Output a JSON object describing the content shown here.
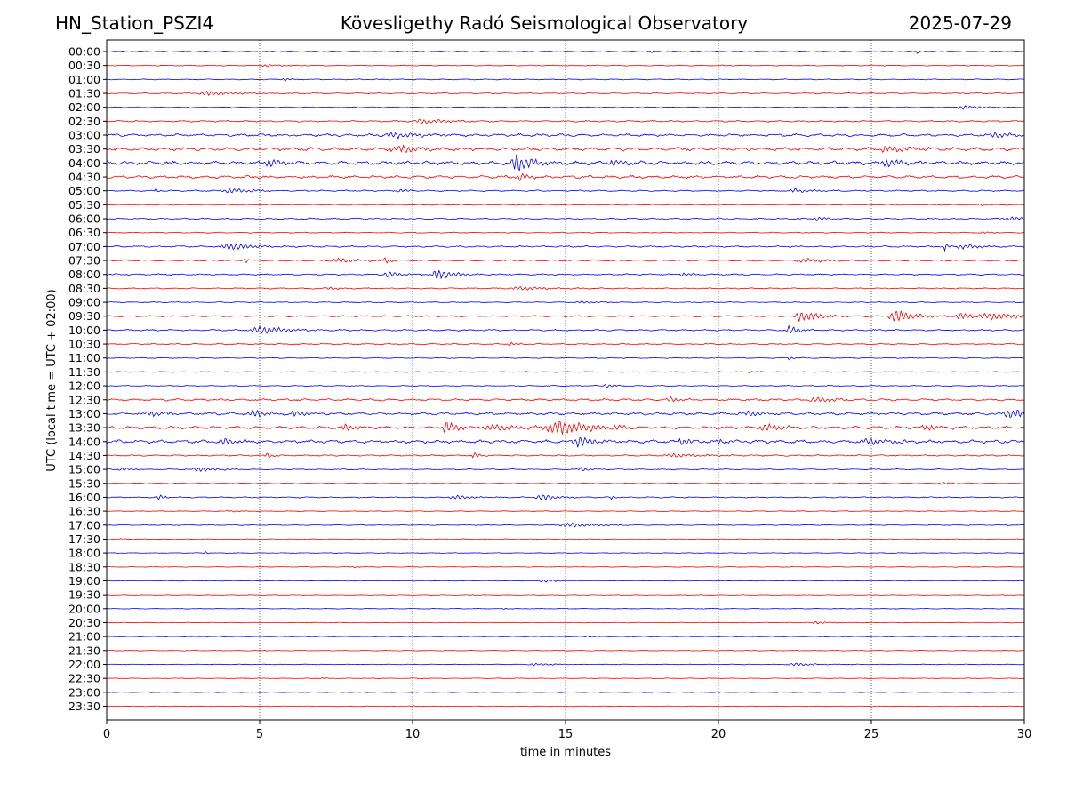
{
  "header": {
    "station": "HN_Station_PSZI4",
    "title": "Kövesligethy Radó Seismological Observatory",
    "date": "2025-07-29"
  },
  "chart_data": {
    "type": "line",
    "title": "Kövesligethy Radó Seismological Observatory",
    "xlabel": "time in minutes",
    "ylabel": "UTC (local time = UTC + 02:00)",
    "xlim": [
      0,
      30
    ],
    "x_ticks": [
      "0",
      "5",
      "10",
      "15",
      "20",
      "25",
      "30"
    ],
    "x_tick_values": [
      0,
      5,
      10,
      15,
      20,
      25,
      30
    ],
    "grid": "vertical dotted lines at 5-minute intervals",
    "trace_colors": [
      "#0000ff",
      "#ff0000"
    ],
    "rows": [
      {
        "label": "00:00",
        "amp": 0.6,
        "events": [
          {
            "t": 17.8,
            "a": 2.5,
            "d": 0.1
          },
          {
            "t": 26.5,
            "a": 2.5,
            "d": 0.1
          }
        ]
      },
      {
        "label": "00:30",
        "amp": 0.6,
        "events": [
          {
            "t": 5.2,
            "a": 1.2,
            "d": 0.4
          }
        ]
      },
      {
        "label": "01:00",
        "amp": 0.6,
        "events": [
          {
            "t": 5.8,
            "a": 1.5,
            "d": 0.3
          }
        ]
      },
      {
        "label": "01:30",
        "amp": 0.7,
        "events": [
          {
            "t": 3.3,
            "a": 2.5,
            "d": 0.8
          }
        ]
      },
      {
        "label": "02:00",
        "amp": 0.6,
        "events": [
          {
            "t": 28.0,
            "a": 2.0,
            "d": 0.6
          }
        ]
      },
      {
        "label": "02:30",
        "amp": 1.0,
        "events": [
          {
            "t": 10.3,
            "a": 2.5,
            "d": 0.8
          }
        ]
      },
      {
        "label": "03:00",
        "amp": 1.6,
        "events": [
          {
            "t": 9.4,
            "a": 3.0,
            "d": 0.8
          },
          {
            "t": 29.0,
            "a": 2.5,
            "d": 0.8
          }
        ]
      },
      {
        "label": "03:30",
        "amp": 2.2,
        "events": [
          {
            "t": 9.6,
            "a": 3.0,
            "d": 1.0
          },
          {
            "t": 25.5,
            "a": 3.0,
            "d": 1.0
          }
        ]
      },
      {
        "label": "04:00",
        "amp": 2.3,
        "events": [
          {
            "t": 5.3,
            "a": 4.5,
            "d": 0.5
          },
          {
            "t": 13.4,
            "a": 9.0,
            "d": 0.6
          },
          {
            "t": 16.5,
            "a": 3.5,
            "d": 0.5
          },
          {
            "t": 25.5,
            "a": 3.5,
            "d": 0.6
          }
        ]
      },
      {
        "label": "04:30",
        "amp": 1.8,
        "events": [
          {
            "t": 13.5,
            "a": 4.0,
            "d": 0.4
          }
        ]
      },
      {
        "label": "05:00",
        "amp": 0.9,
        "events": [
          {
            "t": 1.6,
            "a": 3.0,
            "d": 0.1
          },
          {
            "t": 4.0,
            "a": 2.5,
            "d": 0.8
          },
          {
            "t": 9.6,
            "a": 2.5,
            "d": 0.2
          },
          {
            "t": 22.5,
            "a": 2.0,
            "d": 0.6
          }
        ]
      },
      {
        "label": "05:30",
        "amp": 0.6,
        "events": [
          {
            "t": 28.6,
            "a": 1.2,
            "d": 0.3
          }
        ]
      },
      {
        "label": "06:00",
        "amp": 0.9,
        "events": [
          {
            "t": 23.2,
            "a": 2.5,
            "d": 0.3
          },
          {
            "t": 29.5,
            "a": 2.0,
            "d": 0.8
          }
        ]
      },
      {
        "label": "06:30",
        "amp": 0.6,
        "events": [
          {
            "t": 28.6,
            "a": 1.2,
            "d": 0.3
          }
        ]
      },
      {
        "label": "07:00",
        "amp": 1.0,
        "events": [
          {
            "t": 4.0,
            "a": 3.5,
            "d": 0.8
          },
          {
            "t": 27.4,
            "a": 5.0,
            "d": 0.1
          },
          {
            "t": 28.0,
            "a": 2.5,
            "d": 0.6
          }
        ]
      },
      {
        "label": "07:30",
        "amp": 1.0,
        "events": [
          {
            "t": 4.5,
            "a": 4.0,
            "d": 0.1
          },
          {
            "t": 7.6,
            "a": 3.0,
            "d": 0.6
          },
          {
            "t": 9.1,
            "a": 3.5,
            "d": 0.2
          },
          {
            "t": 22.8,
            "a": 2.5,
            "d": 0.6
          }
        ]
      },
      {
        "label": "08:00",
        "amp": 0.9,
        "events": [
          {
            "t": 9.2,
            "a": 3.5,
            "d": 0.4
          },
          {
            "t": 10.8,
            "a": 6.0,
            "d": 0.5
          },
          {
            "t": 18.8,
            "a": 2.0,
            "d": 0.3
          }
        ]
      },
      {
        "label": "08:30",
        "amp": 0.8,
        "events": [
          {
            "t": 7.3,
            "a": 2.0,
            "d": 0.3
          },
          {
            "t": 13.5,
            "a": 2.0,
            "d": 0.8
          }
        ]
      },
      {
        "label": "09:00",
        "amp": 0.6,
        "events": [
          {
            "t": 15.5,
            "a": 1.5,
            "d": 0.4
          }
        ]
      },
      {
        "label": "09:30",
        "amp": 0.9,
        "events": [
          {
            "t": 22.7,
            "a": 6.0,
            "d": 0.6
          },
          {
            "t": 25.8,
            "a": 7.0,
            "d": 0.6
          },
          {
            "t": 27.9,
            "a": 3.5,
            "d": 0.5
          },
          {
            "t": 29.0,
            "a": 3.5,
            "d": 1.2
          }
        ]
      },
      {
        "label": "10:00",
        "amp": 1.0,
        "events": [
          {
            "t": 5.0,
            "a": 4.0,
            "d": 0.8
          },
          {
            "t": 6.5,
            "a": 2.5,
            "d": 0.1
          },
          {
            "t": 22.3,
            "a": 5.0,
            "d": 0.3
          }
        ]
      },
      {
        "label": "10:30",
        "amp": 0.8,
        "events": [
          {
            "t": 13.2,
            "a": 2.0,
            "d": 0.3
          }
        ]
      },
      {
        "label": "11:00",
        "amp": 0.6,
        "events": [
          {
            "t": 22.3,
            "a": 3.0,
            "d": 0.1
          }
        ]
      },
      {
        "label": "11:30",
        "amp": 0.6,
        "events": [
          {
            "t": 21.0,
            "a": 1.0,
            "d": 0.4
          }
        ]
      },
      {
        "label": "12:00",
        "amp": 0.6,
        "events": [
          {
            "t": 16.3,
            "a": 2.5,
            "d": 0.2
          }
        ]
      },
      {
        "label": "12:30",
        "amp": 1.4,
        "events": [
          {
            "t": 18.4,
            "a": 3.0,
            "d": 0.3
          },
          {
            "t": 23.2,
            "a": 3.0,
            "d": 0.6
          }
        ]
      },
      {
        "label": "13:00",
        "amp": 1.6,
        "events": [
          {
            "t": 1.5,
            "a": 2.5,
            "d": 0.6
          },
          {
            "t": 4.8,
            "a": 3.5,
            "d": 0.5
          },
          {
            "t": 6.1,
            "a": 4.0,
            "d": 0.3
          },
          {
            "t": 21.0,
            "a": 3.0,
            "d": 0.4
          },
          {
            "t": 29.5,
            "a": 5.0,
            "d": 0.6
          }
        ]
      },
      {
        "label": "13:30",
        "amp": 1.8,
        "events": [
          {
            "t": 7.8,
            "a": 4.0,
            "d": 0.4
          },
          {
            "t": 11.1,
            "a": 7.0,
            "d": 0.4
          },
          {
            "t": 12.6,
            "a": 3.0,
            "d": 1.5
          },
          {
            "t": 14.8,
            "a": 6.5,
            "d": 1.2
          },
          {
            "t": 16.6,
            "a": 5.0,
            "d": 0.5
          },
          {
            "t": 21.5,
            "a": 4.0,
            "d": 0.6
          },
          {
            "t": 26.8,
            "a": 3.0,
            "d": 0.5
          }
        ]
      },
      {
        "label": "14:00",
        "amp": 2.0,
        "events": [
          {
            "t": 3.8,
            "a": 3.5,
            "d": 0.4
          },
          {
            "t": 15.4,
            "a": 6.0,
            "d": 0.5
          },
          {
            "t": 18.8,
            "a": 4.0,
            "d": 0.3
          },
          {
            "t": 20.0,
            "a": 3.5,
            "d": 0.2
          },
          {
            "t": 24.9,
            "a": 3.0,
            "d": 0.8
          }
        ]
      },
      {
        "label": "14:30",
        "amp": 0.9,
        "events": [
          {
            "t": 5.2,
            "a": 3.0,
            "d": 0.2
          },
          {
            "t": 12.0,
            "a": 3.0,
            "d": 0.2
          },
          {
            "t": 18.5,
            "a": 2.0,
            "d": 1.0
          }
        ]
      },
      {
        "label": "15:00",
        "amp": 0.7,
        "events": [
          {
            "t": 0.5,
            "a": 2.5,
            "d": 0.3
          },
          {
            "t": 3.0,
            "a": 2.5,
            "d": 0.6
          },
          {
            "t": 15.5,
            "a": 2.0,
            "d": 0.3
          }
        ]
      },
      {
        "label": "15:30",
        "amp": 0.6,
        "events": [
          {
            "t": 27.3,
            "a": 1.5,
            "d": 0.3
          }
        ]
      },
      {
        "label": "16:00",
        "amp": 0.7,
        "events": [
          {
            "t": 1.7,
            "a": 3.0,
            "d": 0.2
          },
          {
            "t": 11.4,
            "a": 2.0,
            "d": 0.6
          },
          {
            "t": 14.2,
            "a": 3.5,
            "d": 0.5
          },
          {
            "t": 16.5,
            "a": 2.5,
            "d": 0.1
          }
        ]
      },
      {
        "label": "16:30",
        "amp": 0.5,
        "events": [
          {
            "t": 4.0,
            "a": 1.0,
            "d": 0.3
          }
        ]
      },
      {
        "label": "17:00",
        "amp": 0.5,
        "events": [
          {
            "t": 15.1,
            "a": 2.5,
            "d": 0.8
          }
        ]
      },
      {
        "label": "17:30",
        "amp": 0.5,
        "events": [
          {
            "t": 0.5,
            "a": 2.0,
            "d": 0.1
          },
          {
            "t": 3.2,
            "a": 1.5,
            "d": 0.1
          }
        ]
      },
      {
        "label": "18:00",
        "amp": 0.4,
        "events": [
          {
            "t": 3.2,
            "a": 2.0,
            "d": 0.1
          }
        ]
      },
      {
        "label": "18:30",
        "amp": 0.4,
        "events": [
          {
            "t": 8.0,
            "a": 0.8,
            "d": 0.3
          }
        ]
      },
      {
        "label": "19:00",
        "amp": 0.4,
        "events": [
          {
            "t": 14.3,
            "a": 1.5,
            "d": 0.5
          }
        ]
      },
      {
        "label": "19:30",
        "amp": 0.4,
        "events": [
          {
            "t": 12.0,
            "a": 0.6,
            "d": 0.3
          }
        ]
      },
      {
        "label": "20:00",
        "amp": 0.4,
        "events": [
          {
            "t": 13.0,
            "a": 0.6,
            "d": 0.3
          }
        ]
      },
      {
        "label": "20:30",
        "amp": 0.4,
        "events": [
          {
            "t": 23.2,
            "a": 1.5,
            "d": 0.4
          }
        ]
      },
      {
        "label": "21:00",
        "amp": 0.4,
        "events": [
          {
            "t": 15.7,
            "a": 1.2,
            "d": 0.2
          }
        ]
      },
      {
        "label": "21:30",
        "amp": 0.4,
        "events": [
          {
            "t": 5.0,
            "a": 0.6,
            "d": 0.3
          }
        ]
      },
      {
        "label": "22:00",
        "amp": 0.4,
        "events": [
          {
            "t": 14.0,
            "a": 1.2,
            "d": 0.6
          },
          {
            "t": 22.5,
            "a": 1.5,
            "d": 0.6
          }
        ]
      },
      {
        "label": "22:30",
        "amp": 0.4,
        "events": [
          {
            "t": 7.0,
            "a": 0.6,
            "d": 0.3
          }
        ]
      },
      {
        "label": "23:00",
        "amp": 0.4,
        "events": [
          {
            "t": 20.0,
            "a": 0.6,
            "d": 0.3
          }
        ]
      },
      {
        "label": "23:30",
        "amp": 0.4,
        "events": [
          {
            "t": 10.0,
            "a": 0.6,
            "d": 0.3
          }
        ]
      }
    ]
  }
}
